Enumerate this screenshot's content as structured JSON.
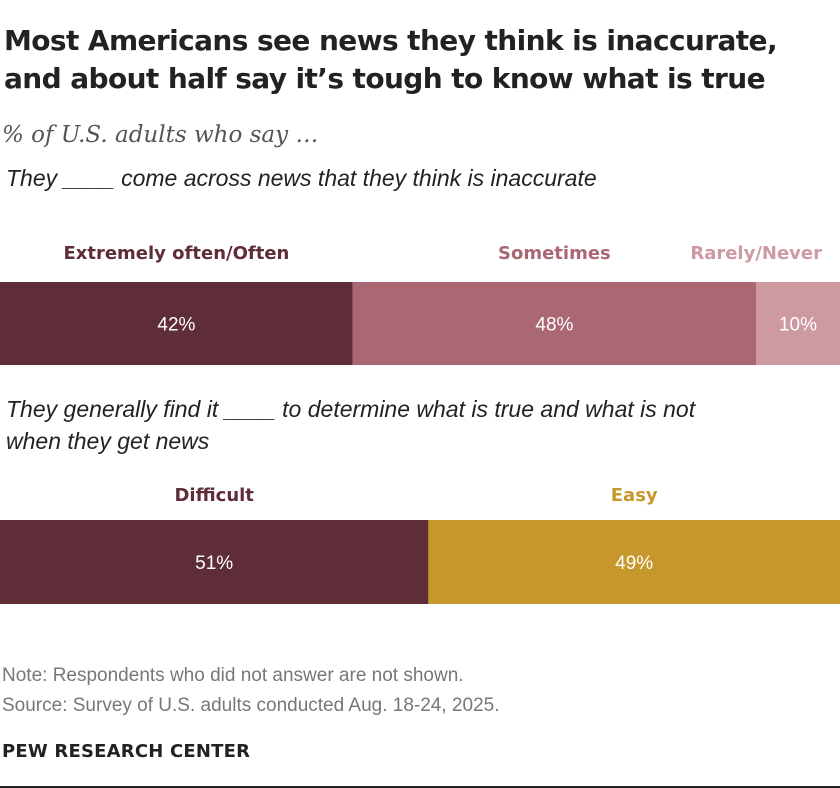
{
  "title": "Most Americans see news they think is inaccurate, and about half say it’s tough to know what is true",
  "subtitle": "% of U.S. adults who say …",
  "note": "Note: Respondents who did not answer are not shown.",
  "source": "Source: Survey of U.S. adults conducted Aug. 18-24, 2025.",
  "brand": "PEW RESEARCH CENTER",
  "chart_data": [
    {
      "type": "bar",
      "orientation": "horizontal-stacked",
      "question": "They ____ come across news that they think is inaccurate",
      "categories": [
        "Extremely often/Often",
        "Sometimes",
        "Rarely/Never"
      ],
      "values": [
        42,
        48,
        10
      ],
      "labels": [
        "42%",
        "48%",
        "10%"
      ],
      "colors": [
        "#5e2d38",
        "#a96873",
        "#cd9aa2"
      ],
      "label_colors": [
        "#5e2d38",
        "#a96873",
        "#cd9aa2"
      ],
      "total": 100
    },
    {
      "type": "bar",
      "orientation": "horizontal-stacked",
      "question": "They generally find it ____ to determine what is true and what is not when they get news",
      "categories": [
        "Difficult",
        "Easy"
      ],
      "values": [
        51,
        49
      ],
      "labels": [
        "51%",
        "49%"
      ],
      "colors": [
        "#5e2d38",
        "#c6972a"
      ],
      "label_colors": [
        "#5e2d38",
        "#c6972a"
      ],
      "total": 100
    }
  ]
}
